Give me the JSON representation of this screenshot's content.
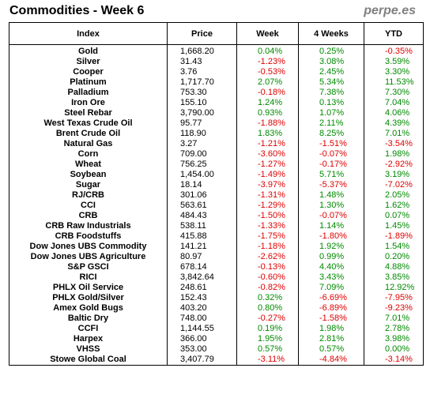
{
  "title": "Commodities - Week 6",
  "brand": "perpe.es",
  "columns": [
    "Index",
    "Price",
    "Week",
    "4 Weeks",
    "YTD"
  ],
  "rows": [
    [
      "Gold",
      "1,668.20",
      "0.04%",
      "0.25%",
      "-0.35%"
    ],
    [
      "Silver",
      "31.43",
      "-1.23%",
      "3.08%",
      "3.59%"
    ],
    [
      "Cooper",
      "3.76",
      "-0.53%",
      "2.45%",
      "3.30%"
    ],
    [
      "Platinum",
      "1,717.70",
      "2.07%",
      "5.34%",
      "11.53%"
    ],
    [
      "Palladium",
      "753.30",
      "-0.18%",
      "7.38%",
      "7.30%"
    ],
    [
      "Iron Ore",
      "155.10",
      "1.24%",
      "0.13%",
      "7.04%"
    ],
    [
      "Steel Rebar",
      "3,790.00",
      "0.93%",
      "1.07%",
      "4.06%"
    ],
    [
      "West Texas Crude Oil",
      "95.77",
      "-1.88%",
      "2.11%",
      "4.39%"
    ],
    [
      "Brent Crude Oil",
      "118.90",
      "1.83%",
      "8.25%",
      "7.01%"
    ],
    [
      "Natural Gas",
      "3.27",
      "-1.21%",
      "-1.51%",
      "-3.54%"
    ],
    [
      "Corn",
      "709.00",
      "-3.60%",
      "-0.07%",
      "1.98%"
    ],
    [
      "Wheat",
      "756.25",
      "-1.27%",
      "-0.17%",
      "-2.92%"
    ],
    [
      "Soybean",
      "1,454.00",
      "-1.49%",
      "5.71%",
      "3.19%"
    ],
    [
      "Sugar",
      "18.14",
      "-3.97%",
      "-5.37%",
      "-7.02%"
    ],
    [
      "RJ/CRB",
      "301.06",
      "-1.31%",
      "1.48%",
      "2.05%"
    ],
    [
      "CCI",
      "563.61",
      "-1.29%",
      "1.30%",
      "1.62%"
    ],
    [
      "CRB",
      "484.43",
      "-1.50%",
      "-0.07%",
      "0.07%"
    ],
    [
      "CRB Raw Industrials",
      "538.11",
      "-1.33%",
      "1.14%",
      "1.45%"
    ],
    [
      "CRB Foodstuffs",
      "415.88",
      "-1.75%",
      "-1.80%",
      "-1.89%"
    ],
    [
      "Dow Jones UBS Commodity",
      "141.21",
      "-1.18%",
      "1.92%",
      "1.54%"
    ],
    [
      "Dow Jones UBS Agriculture",
      "80.97",
      "-2.62%",
      "0.99%",
      "0.20%"
    ],
    [
      "S&P GSCI",
      "678.14",
      "-0.13%",
      "4.40%",
      "4.88%"
    ],
    [
      "RICI",
      "3,842.64",
      "-0.60%",
      "3.43%",
      "3.85%"
    ],
    [
      "PHLX Oil Service",
      "248.61",
      "-0.82%",
      "7.09%",
      "12.92%"
    ],
    [
      "PHLX Gold/Silver",
      "152.43",
      "0.32%",
      "-6.69%",
      "-7.95%"
    ],
    [
      "Amex Gold Bugs",
      "403.20",
      "0.80%",
      "-6.89%",
      "-9.23%"
    ],
    [
      "Baltic Dry",
      "748.00",
      "-0.27%",
      "-1.58%",
      "7.01%"
    ],
    [
      "CCFI",
      "1,144.55",
      "0.19%",
      "1.98%",
      "2.78%"
    ],
    [
      "Harpex",
      "366.00",
      "1.95%",
      "2.81%",
      "3.98%"
    ],
    [
      "VHSS",
      "353.00",
      "0.57%",
      "0.57%",
      "0.00%"
    ],
    [
      "Stowe Global Coal",
      "3,407.79",
      "-3.11%",
      "-4.84%",
      "-3.14%"
    ]
  ],
  "colors": {
    "positive": "#008a00",
    "negative": "#e00000",
    "brand": "#7f7f7f"
  }
}
